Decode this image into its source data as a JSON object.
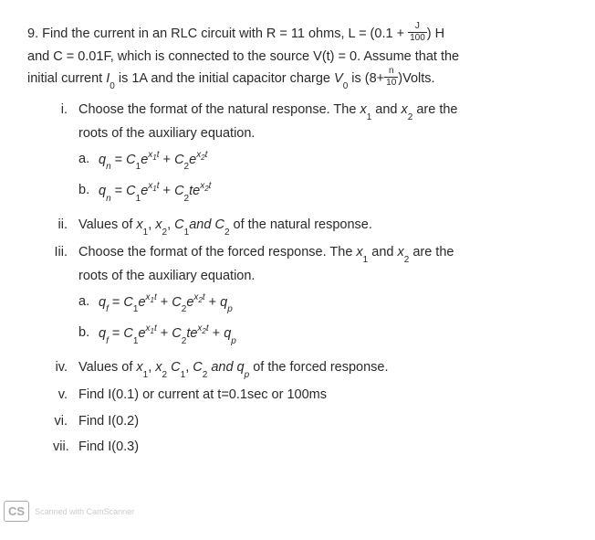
{
  "problem": {
    "number": "9.",
    "intro": {
      "line1_prefix": "Find the current in an RLC circuit with R = 11 ohms, L = (0.1 + ",
      "line1_frac_top": "J",
      "line1_frac_bot": "100",
      "line1_suffix": ") H",
      "line2": "and C = 0.01F, which is connected to the source V(t) = 0. Assume that the",
      "line3_prefix": "initial current ",
      "line3_I": "I",
      "line3_I_sub": "0",
      "line3_mid": " is 1A and the initial capacitor charge ",
      "line3_V": "V",
      "line3_V_sub": "0",
      "line3_mid2": " is (8+",
      "line3_frac_top": "n",
      "line3_frac_bot": "10",
      "line3_suffix": ")Volts."
    }
  },
  "items": {
    "i": {
      "num": "i.",
      "line1": "Choose the format of the natural response. The ",
      "x1": "x",
      "x1_sub": "1",
      "and": " and ",
      "x2": "x",
      "x2_sub": "2",
      "line1_end": " are the",
      "line2": "roots of the auxiliary equation.",
      "opt_a_label": "a.",
      "opt_b_label": "b."
    },
    "ii": {
      "num": "ii.",
      "text": "Values of ",
      "x1": "x",
      "x1_sub": "1",
      "comma1": ", ",
      "x2": "x",
      "x2_sub": "2",
      "comma2": ", ",
      "c1": "C",
      "c1_sub": "1",
      "and": "and ",
      "c2": "C",
      "c2_sub": "2",
      "end": " of the natural response."
    },
    "iii": {
      "num": "Iii.",
      "line1": "Choose the format of the forced response. The ",
      "x1": "x",
      "x1_sub": "1",
      "and": " and ",
      "x2": "x",
      "x2_sub": "2",
      "line1_end": " are the",
      "line2": "roots of the auxiliary equation.",
      "opt_a_label": "a.",
      "opt_b_label": "b."
    },
    "iv": {
      "num": "iv.",
      "text": "Values of ",
      "x1": "x",
      "x1_sub": "1",
      "comma1": ", ",
      "x2": "x",
      "x2_sub": "2",
      "comma2": " ",
      "c1": "C",
      "c1_sub": "1",
      "comma3": ", ",
      "c2": "C",
      "c2_sub": "2",
      "and": " and ",
      "qp": "q",
      "qp_sub": "p",
      "end": " of the forced response."
    },
    "v": {
      "num": "v.",
      "text": "Find I(0.1) or current at t=0.1sec or 100ms"
    },
    "vi": {
      "num": "vi.",
      "text": "Find I(0.2)"
    },
    "vii": {
      "num": "vii.",
      "text": "Find I(0.3)"
    }
  },
  "eq": {
    "q": "q",
    "n": "n",
    "f": "f",
    "eq": " = ",
    "C": "C",
    "one": "1",
    "two": "2",
    "e": "e",
    "x": "x",
    "t": "t",
    "plus": " + ",
    "te": "te",
    "qp": "q",
    "p": "p"
  },
  "footer": {
    "cs": "CS",
    "text": "Scanned with CamScanner"
  },
  "colors": {
    "text": "#2a2a2a",
    "background": "#ffffff",
    "footer": "#cccccc"
  }
}
